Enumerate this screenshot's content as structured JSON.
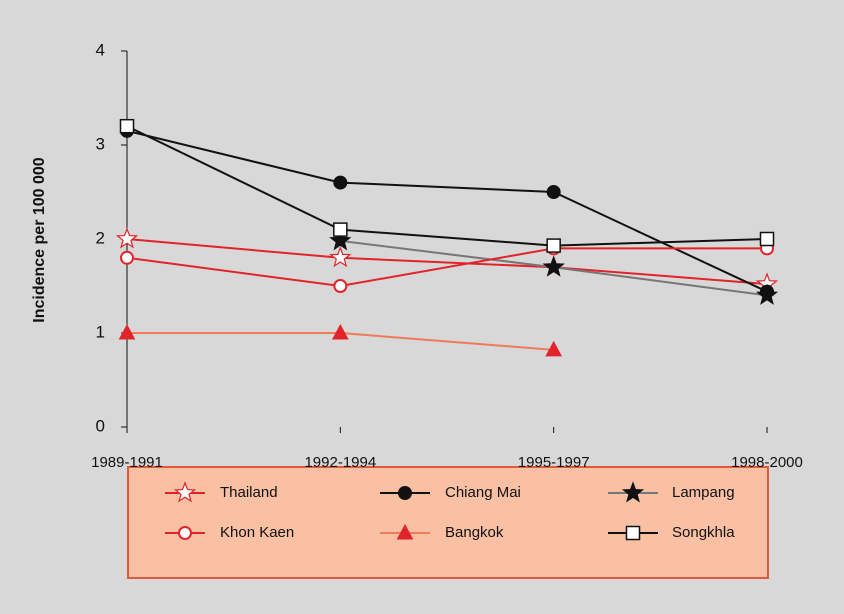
{
  "chart_data": {
    "type": "line",
    "ylabel": "Incidence per 100 000",
    "categories": [
      "1989-1991",
      "1992-1994",
      "1995-1997",
      "1998-2000"
    ],
    "ylim": [
      0,
      4
    ],
    "yticks": [
      0,
      1,
      2,
      3,
      4
    ],
    "series": [
      {
        "name": "Thailand",
        "color": "#e2232a",
        "marker": "star",
        "marker_fill": "#ffffff",
        "marker_stroke": "#e2232a",
        "values": [
          2.0,
          1.8,
          1.7,
          1.52
        ]
      },
      {
        "name": "Chiang Mai",
        "color": "#111111",
        "marker": "circle",
        "marker_fill": "#111111",
        "marker_stroke": "#111111",
        "values": [
          3.15,
          2.6,
          2.5,
          1.44
        ]
      },
      {
        "name": "Lampang",
        "color": "#777777",
        "marker": "star",
        "marker_fill": "#111111",
        "marker_stroke": "#111111",
        "values": [
          null,
          1.98,
          1.7,
          1.4
        ]
      },
      {
        "name": "Khon Kaen",
        "color": "#e2232a",
        "marker": "circle",
        "marker_fill": "#ffffff",
        "marker_stroke": "#e2232a",
        "values": [
          1.8,
          1.5,
          1.9,
          1.9
        ]
      },
      {
        "name": "Bangkok",
        "color": "#ef7a5c",
        "marker": "triangle",
        "marker_fill": "#e2232a",
        "marker_stroke": "#e2232a",
        "values": [
          1.0,
          1.0,
          0.82,
          null
        ]
      },
      {
        "name": "Songkhla",
        "color": "#111111",
        "marker": "square",
        "marker_fill": "#ffffff",
        "marker_stroke": "#111111",
        "values": [
          3.2,
          2.1,
          1.93,
          2.0
        ]
      }
    ]
  }
}
